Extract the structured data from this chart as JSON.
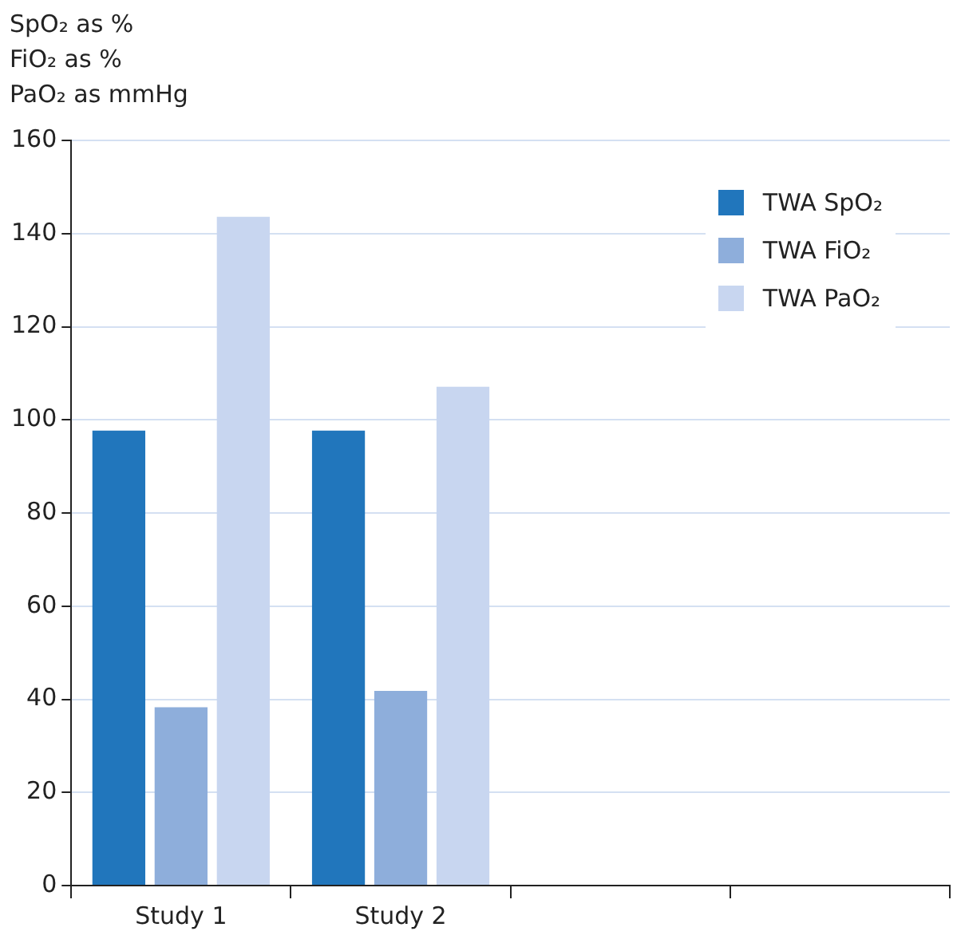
{
  "chart_data": {
    "type": "bar",
    "ylabel": "SpO₂ as %\nFiO₂ as %\nPaO₂ as mmHg",
    "categories": [
      "Study 1",
      "Study 2",
      null,
      null
    ],
    "series": [
      {
        "name": "TWA SpO₂",
        "color": "#2176bc",
        "values": [
          97.7,
          97.7,
          null,
          null
        ]
      },
      {
        "name": "TWA FiO₂",
        "color": "#8eaedb",
        "values": [
          38.3,
          41.8,
          null,
          null
        ]
      },
      {
        "name": "TWA PaO₂",
        "color": "#c8d6f0",
        "values": [
          143.6,
          107.1,
          null,
          null
        ]
      }
    ],
    "ylim": [
      0,
      160
    ],
    "yticks": [
      0,
      20,
      40,
      60,
      80,
      100,
      120,
      140,
      160
    ],
    "grid": "y",
    "legend": "top right"
  }
}
